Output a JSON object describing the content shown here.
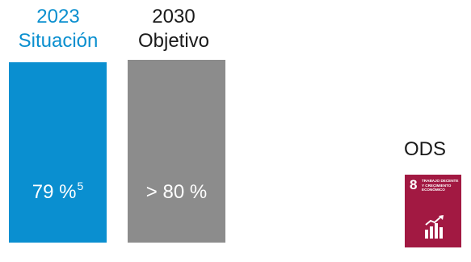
{
  "chart_data": {
    "type": "bar",
    "categories": [
      "2023 Situación",
      "2030 Objetivo"
    ],
    "values": [
      79,
      80
    ],
    "ylim": [
      0,
      100
    ],
    "bars": [
      {
        "year": "2023",
        "label": "Situación",
        "value_text": "79 %",
        "footnote": "5",
        "color": "#0a8fd0",
        "header_color": "#0a8fcf"
      },
      {
        "year": "2030",
        "label": "Objetivo",
        "value_text": "> 80 %",
        "color": "#8c8c8c",
        "header_color": "#1a1a1a"
      }
    ]
  },
  "ods": {
    "label": "ODS",
    "icon": {
      "name": "sdg-8-decent-work-icon",
      "number": "8",
      "text": "Trabajo decente y crecimiento económico",
      "color": "#a21942"
    }
  }
}
